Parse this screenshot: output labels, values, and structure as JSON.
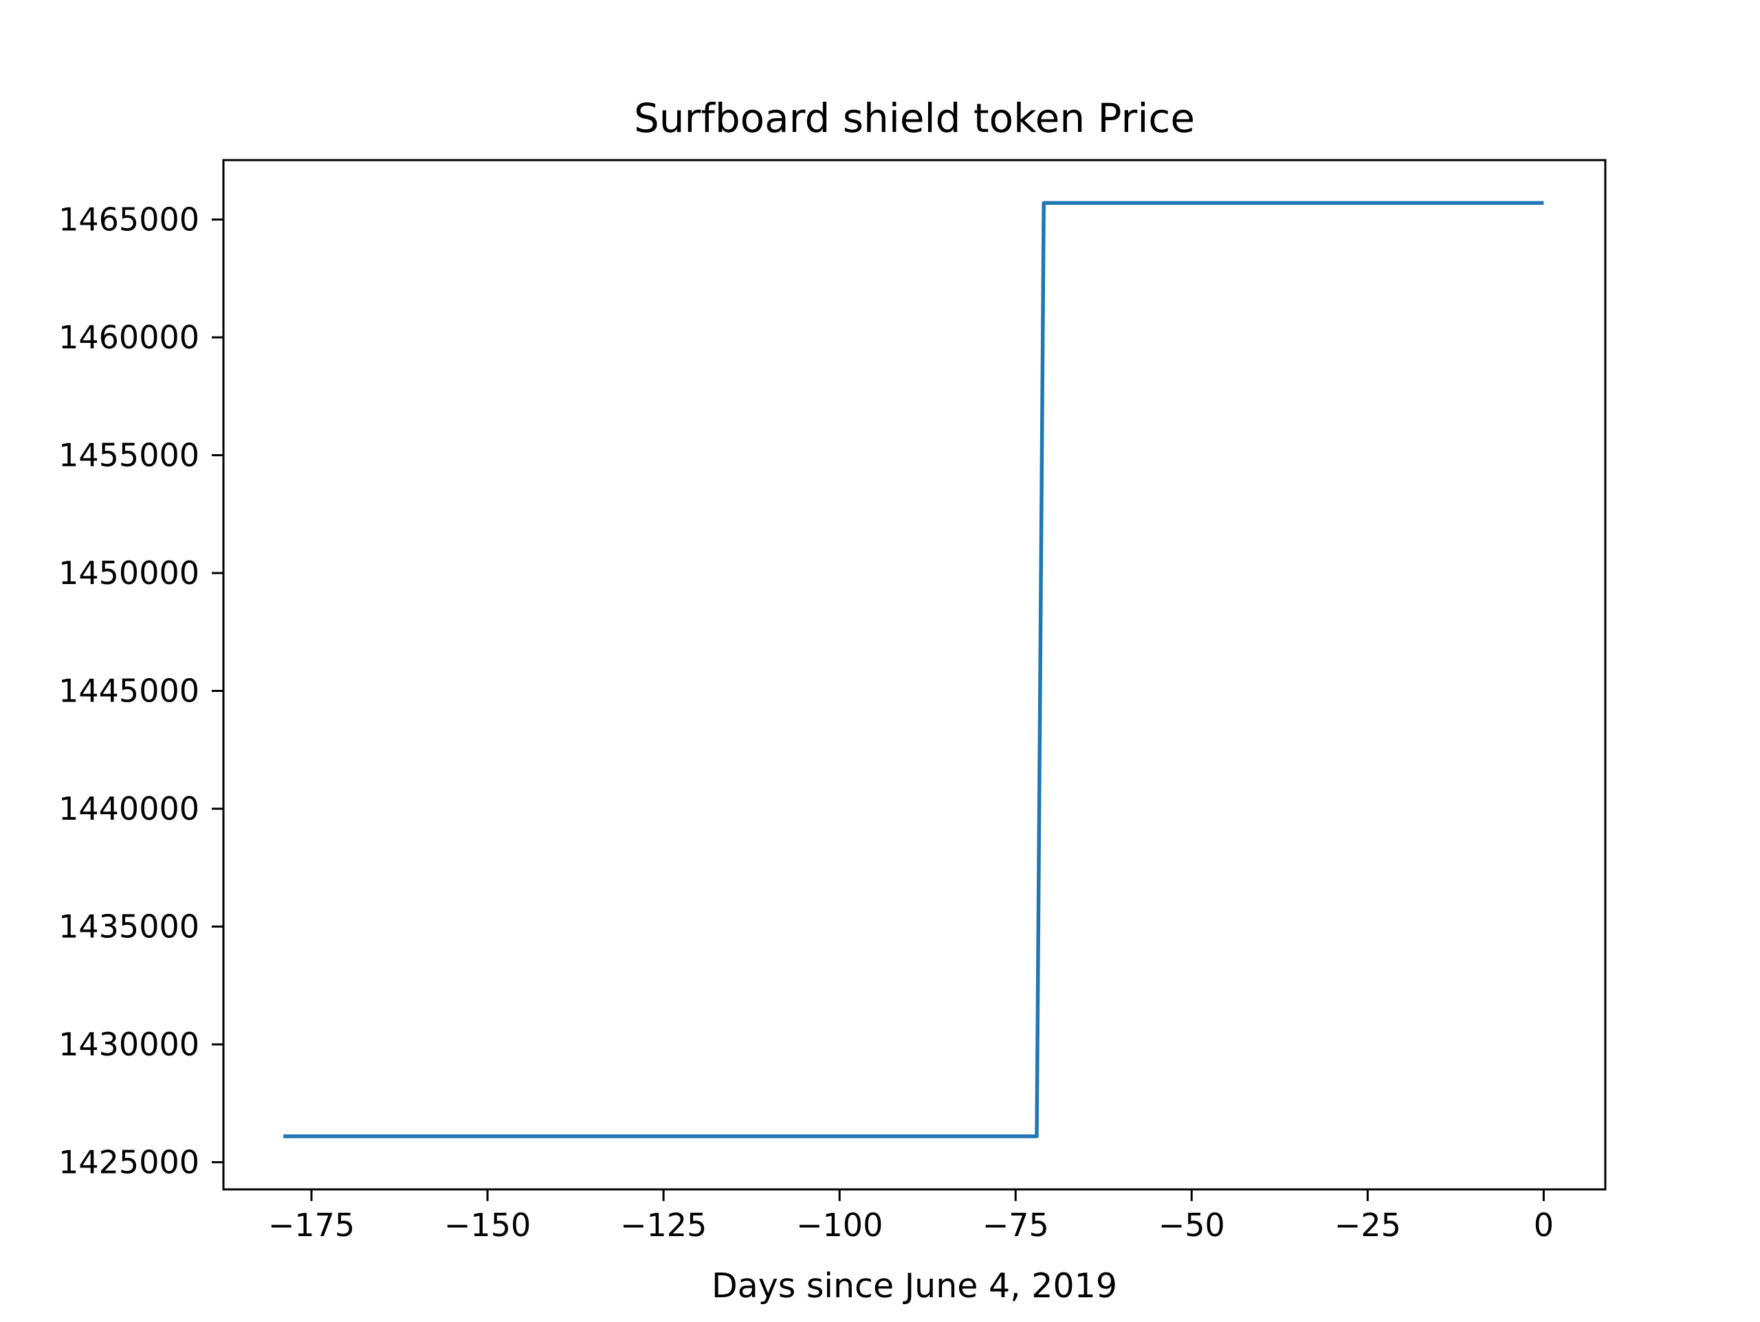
{
  "chart_data": {
    "type": "line",
    "title": "Surfboard shield token Price",
    "xlabel": "Days since June 4, 2019",
    "ylabel": "",
    "xlim": [
      -187.5,
      8.75
    ],
    "ylim": [
      1423850,
      1467520
    ],
    "grid": false,
    "xticks": [
      -175,
      -150,
      -125,
      -100,
      -75,
      -50,
      -25,
      0
    ],
    "yticks": [
      1425000,
      1430000,
      1435000,
      1440000,
      1445000,
      1450000,
      1455000,
      1460000,
      1465000
    ],
    "series": [
      {
        "color": "#1f77b4",
        "x": [
          -179,
          -72,
          -71,
          0
        ],
        "y": [
          1426100,
          1426100,
          1465700,
          1465700
        ]
      }
    ]
  }
}
